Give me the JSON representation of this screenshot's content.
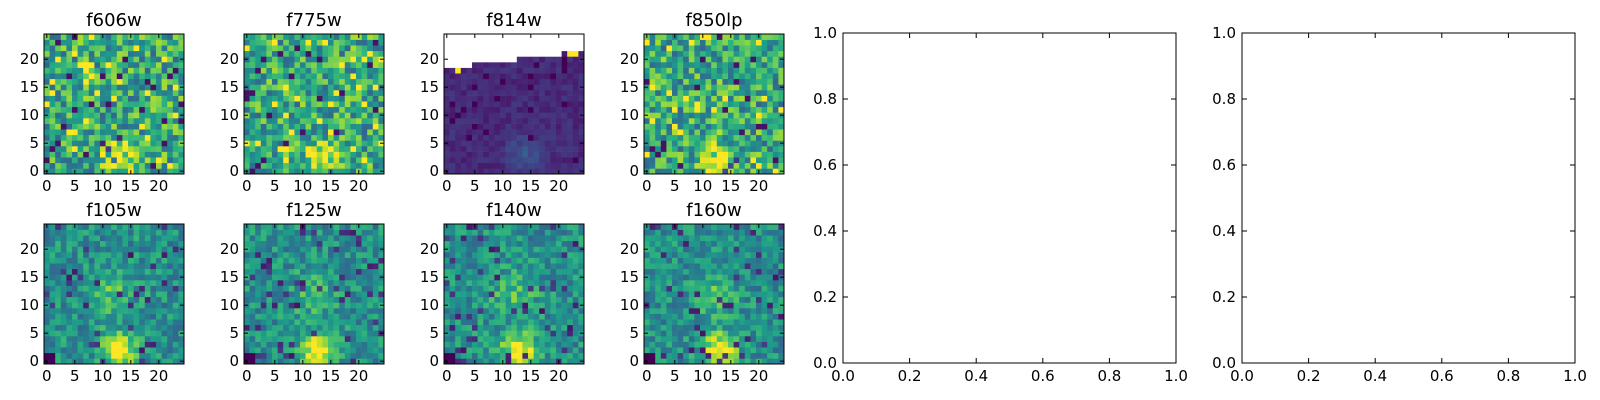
{
  "chart_data": [
    {
      "type": "heatmap",
      "title": "f606w",
      "grid_size": 25,
      "pattern": "noise_bright",
      "xticks": [
        "0",
        "5",
        "10",
        "15",
        "20"
      ],
      "yticks": [
        "0",
        "5",
        "10",
        "15",
        "20"
      ],
      "xlim": [
        0,
        24
      ],
      "ylim": [
        0,
        24
      ]
    },
    {
      "type": "heatmap",
      "title": "f775w",
      "grid_size": 25,
      "pattern": "noise_bright",
      "xticks": [
        "0",
        "5",
        "10",
        "15",
        "20"
      ],
      "yticks": [
        "0",
        "5",
        "10",
        "15",
        "20"
      ],
      "xlim": [
        0,
        24
      ],
      "ylim": [
        0,
        24
      ]
    },
    {
      "type": "heatmap",
      "title": "f814w",
      "grid_size": 25,
      "pattern": "dark_with_masked_top",
      "xticks": [
        "0",
        "5",
        "10",
        "15",
        "20"
      ],
      "yticks": [
        "0",
        "5",
        "10",
        "15",
        "20"
      ],
      "xlim": [
        0,
        24
      ],
      "ylim": [
        0,
        24
      ]
    },
    {
      "type": "heatmap",
      "title": "f850lp",
      "grid_size": 25,
      "pattern": "noise_bright",
      "xticks": [
        "0",
        "5",
        "10",
        "15",
        "20"
      ],
      "yticks": [
        "0",
        "5",
        "10",
        "15",
        "20"
      ],
      "xlim": [
        0,
        24
      ],
      "ylim": [
        0,
        24
      ]
    },
    {
      "type": "heatmap",
      "title": "f105w",
      "grid_size": 25,
      "pattern": "smooth_source",
      "xticks": [
        "0",
        "5",
        "10",
        "15",
        "20"
      ],
      "yticks": [
        "0",
        "5",
        "10",
        "15",
        "20"
      ],
      "xlim": [
        0,
        24
      ],
      "ylim": [
        0,
        24
      ]
    },
    {
      "type": "heatmap",
      "title": "f125w",
      "grid_size": 25,
      "pattern": "smooth_source",
      "xticks": [
        "0",
        "5",
        "10",
        "15",
        "20"
      ],
      "yticks": [
        "0",
        "5",
        "10",
        "15",
        "20"
      ],
      "xlim": [
        0,
        24
      ],
      "ylim": [
        0,
        24
      ]
    },
    {
      "type": "heatmap",
      "title": "f140w",
      "grid_size": 25,
      "pattern": "smooth_source",
      "xticks": [
        "0",
        "5",
        "10",
        "15",
        "20"
      ],
      "yticks": [
        "0",
        "5",
        "10",
        "15",
        "20"
      ],
      "xlim": [
        0,
        24
      ],
      "ylim": [
        0,
        24
      ]
    },
    {
      "type": "heatmap",
      "title": "f160w",
      "grid_size": 25,
      "pattern": "smooth_source",
      "xticks": [
        "0",
        "5",
        "10",
        "15",
        "20"
      ],
      "yticks": [
        "0",
        "5",
        "10",
        "15",
        "20"
      ],
      "xlim": [
        0,
        24
      ],
      "ylim": [
        0,
        24
      ]
    },
    {
      "type": "line",
      "title": "",
      "series": [],
      "xlim": [
        0,
        1
      ],
      "ylim": [
        0,
        1
      ],
      "xticks": [
        "0.0",
        "0.2",
        "0.4",
        "0.6",
        "0.8",
        "1.0"
      ],
      "yticks": [
        "0.0",
        "0.2",
        "0.4",
        "0.6",
        "0.8",
        "1.0"
      ]
    },
    {
      "type": "line",
      "title": "",
      "series": [],
      "xlim": [
        0,
        1
      ],
      "ylim": [
        0,
        1
      ],
      "xticks": [
        "0.0",
        "0.2",
        "0.4",
        "0.6",
        "0.8",
        "1.0"
      ],
      "yticks": [
        "0.0",
        "0.2",
        "0.4",
        "0.6",
        "0.8",
        "1.0"
      ]
    }
  ],
  "colors": {
    "colormap": "viridis",
    "masked": "#ffffff",
    "axis": "#000000"
  }
}
